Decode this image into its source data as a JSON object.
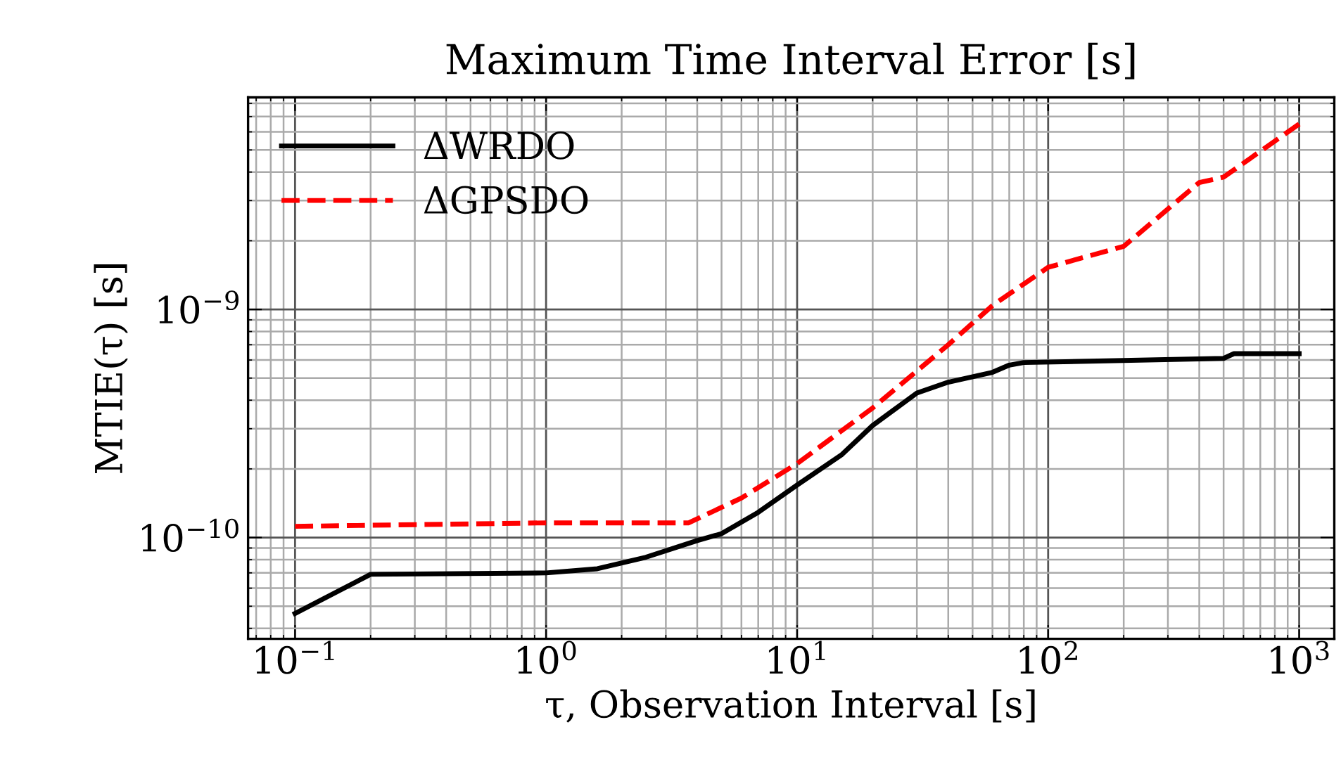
{
  "chart_data": {
    "type": "line",
    "title": "Maximum Time Interval Error [s]",
    "xlabel": "τ, Observation Interval [s]",
    "ylabel": "MTIE(τ) [s]",
    "log": "xy",
    "grid": true,
    "legend": "top left",
    "xlim": [
      0.065,
      1380
    ],
    "ylim": [
      3.6e-11,
      8.5e-09
    ],
    "xticks": [
      {
        "value": 0.1,
        "label": "10$^{−1}$"
      },
      {
        "value": 1,
        "label": "10$^{0}$"
      },
      {
        "value": 10,
        "label": "10$^{1}$"
      },
      {
        "value": 100,
        "label": "10$^{2}$"
      },
      {
        "value": 1000,
        "label": "10$^{3}$"
      }
    ],
    "yticks": [
      {
        "value": 1e-10,
        "label": "10$^{−10}$"
      },
      {
        "value": 1e-09,
        "label": "10$^{−9}$"
      }
    ],
    "series": [
      {
        "name": "ΔWRDO",
        "color": "#000000",
        "line_style": "solid",
        "x": [
          0.1,
          0.2,
          1,
          1.6,
          2.5,
          4,
          5,
          7,
          10,
          15,
          20,
          30,
          40,
          60,
          70,
          80,
          500,
          550,
          1000
        ],
        "values": [
          4.65e-11,
          6.9e-11,
          7e-11,
          7.3e-11,
          8.2e-11,
          9.7e-11,
          1.04e-10,
          1.29e-10,
          1.7e-10,
          2.3e-10,
          3.1e-10,
          4.3e-10,
          4.8e-10,
          5.3e-10,
          5.7e-10,
          5.85e-10,
          6.1e-10,
          6.4e-10,
          6.4e-10
        ]
      },
      {
        "name": "ΔGPSDO",
        "color": "#ff0000",
        "line_style": "dashed",
        "x": [
          0.1,
          1,
          3.7,
          6,
          10,
          20,
          40,
          60,
          100,
          200,
          400,
          500,
          1000
        ],
        "values": [
          1.12e-10,
          1.16e-10,
          1.16e-10,
          1.49e-10,
          2.11e-10,
          3.7e-10,
          7e-10,
          1.04e-09,
          1.53e-09,
          1.89e-09,
          3.6e-09,
          3.8e-09,
          6.5e-09
        ]
      }
    ]
  }
}
